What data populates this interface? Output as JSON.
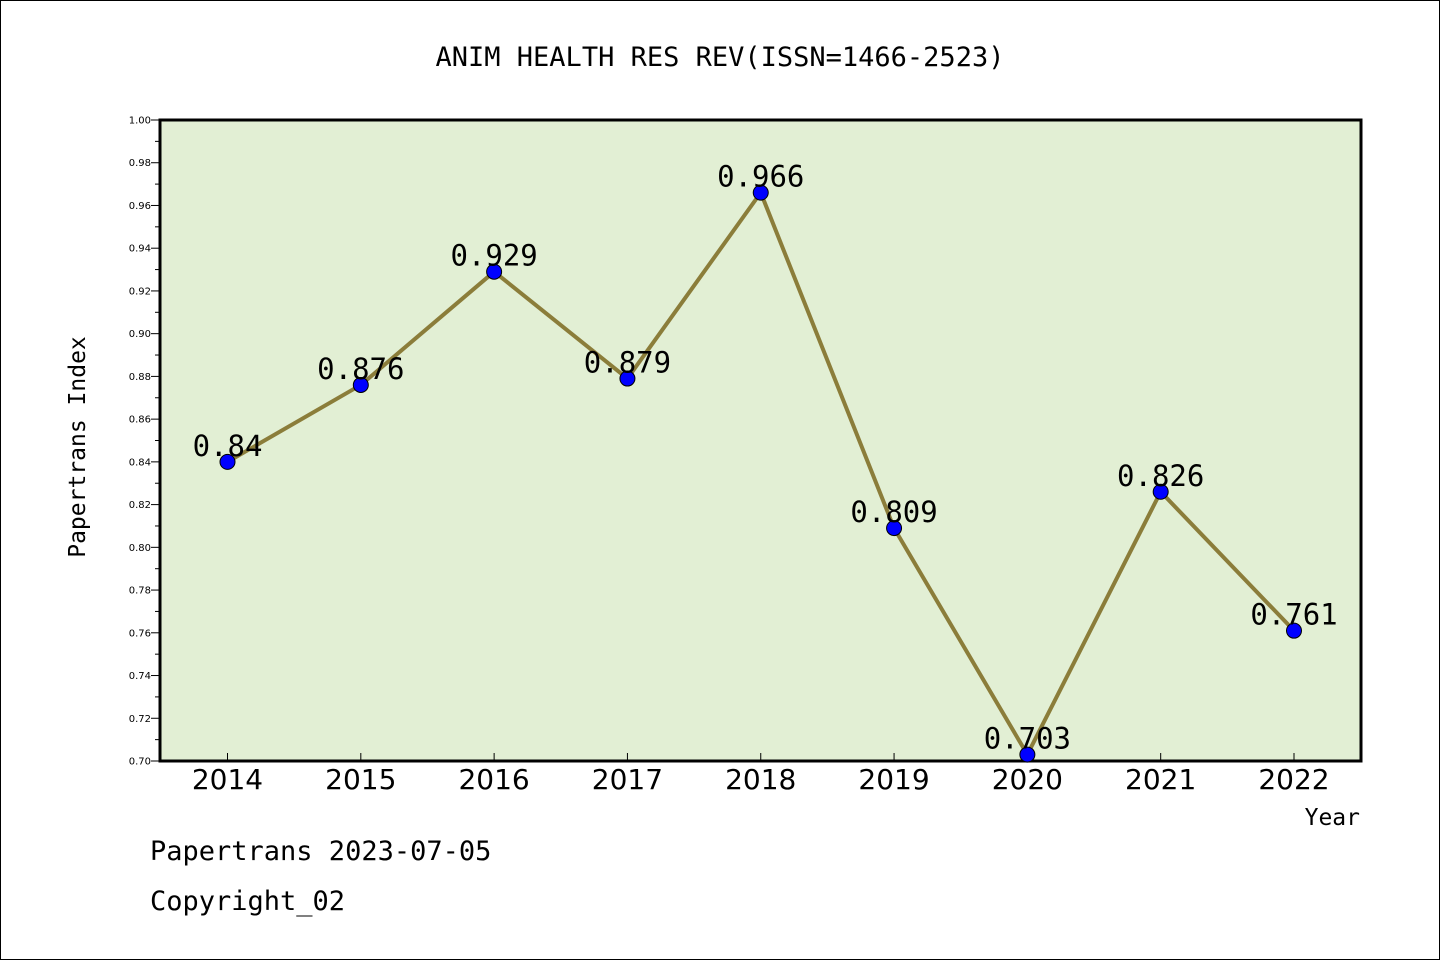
{
  "chart_data": {
    "type": "line",
    "title": "ANIM HEALTH RES REV(ISSN=1466-2523)",
    "xlabel": "Year",
    "ylabel": "Papertrans Index",
    "categories": [
      "2014",
      "2015",
      "2016",
      "2017",
      "2018",
      "2019",
      "2020",
      "2021",
      "2022"
    ],
    "values": [
      0.84,
      0.876,
      0.929,
      0.879,
      0.966,
      0.809,
      0.703,
      0.826,
      0.761
    ],
    "data_labels": [
      "0.84",
      "0.876",
      "0.929",
      "0.879",
      "0.966",
      "0.809",
      "0.703",
      "0.826",
      "0.761"
    ],
    "ylim": [
      0.7,
      1.0
    ],
    "yticks": [
      "0.70",
      "0.72",
      "0.74",
      "0.76",
      "0.78",
      "0.80",
      "0.82",
      "0.84",
      "0.86",
      "0.88",
      "0.90",
      "0.92",
      "0.94",
      "0.96",
      "0.98",
      "1.00"
    ],
    "grid": false,
    "colors": {
      "plot_background": "#e2efd4",
      "line": "#8b7d3a",
      "marker": "#0000ff"
    }
  },
  "footer": {
    "source": "Papertrans 2023-07-05",
    "copyright": "Copyright_02"
  }
}
